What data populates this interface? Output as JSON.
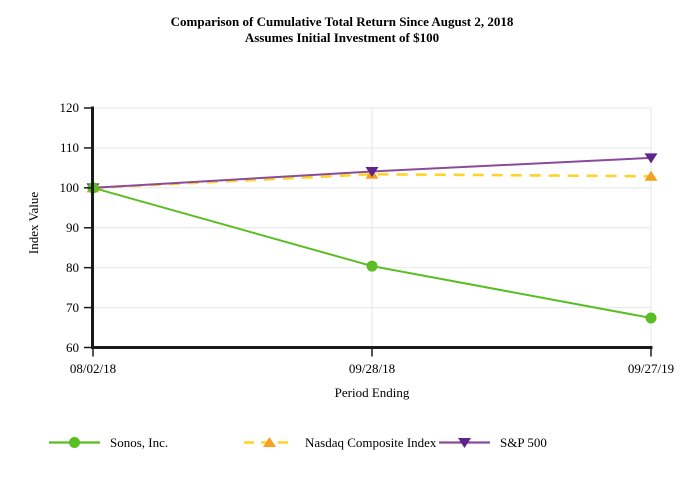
{
  "title": {
    "line1": "Comparison of Cumulative Total Return Since August 2, 2018",
    "line2": "Assumes Initial Investment of $100"
  },
  "chart_data": {
    "type": "line",
    "title": "Comparison of Cumulative Total Return Since August 2, 2018",
    "subtitle": "Assumes Initial Investment of $100",
    "xlabel": "Period Ending",
    "ylabel": "Index Value",
    "x_categories": [
      "08/02/18",
      "09/28/18",
      "09/27/19"
    ],
    "yticks": [
      60,
      70,
      80,
      90,
      100,
      110,
      120
    ],
    "ylim": [
      60,
      120
    ],
    "grid": true,
    "legend_position": "bottom",
    "series": [
      {
        "name": "Sonos, Inc.",
        "values": [
          100,
          80.4,
          67.4
        ],
        "color": "#5abe23",
        "marker_color": "#5abe23",
        "marker": "circle",
        "line_style": "solid"
      },
      {
        "name": "Nasdaq Composite Index",
        "values": [
          100,
          103.4,
          102.9
        ],
        "color": "#fed42a",
        "marker_color": "#f6a11f",
        "marker": "triangle-up",
        "line_style": "dashed"
      },
      {
        "name": "S&P 500",
        "values": [
          100,
          104.1,
          107.5
        ],
        "color": "#8a4b9b",
        "marker_color": "#5f2488",
        "marker": "triangle-down",
        "line_style": "solid"
      }
    ],
    "colors": {
      "axis": "#1a1a1a",
      "grid": "#e9e9e9",
      "background": "#ffffff",
      "text": "#000000"
    }
  }
}
